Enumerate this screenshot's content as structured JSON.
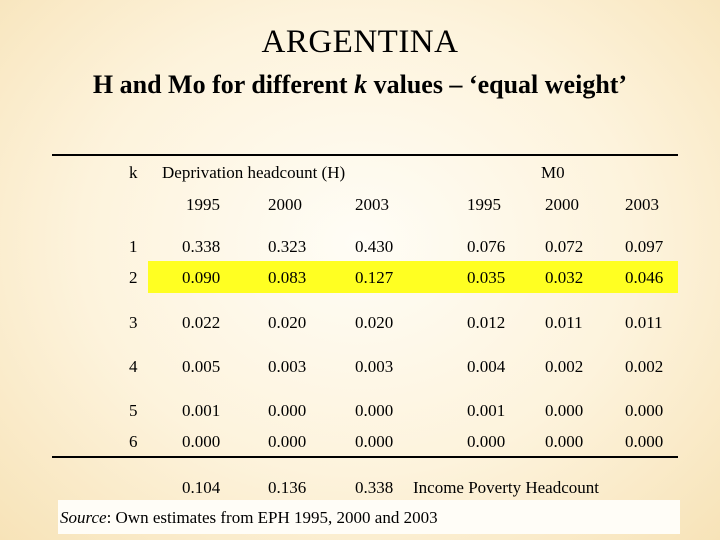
{
  "title": "ARGENTINA",
  "subtitle": {
    "before_k": "H and Mo for different ",
    "k": "k",
    "after_k": " values – ‘equal weight’"
  },
  "table": {
    "k_header": "k",
    "group_h_label": "Deprivation headcount (H)",
    "group_m0_label": "M0",
    "years": [
      "1995",
      "2000",
      "2003",
      "1995",
      "2000",
      "2003"
    ],
    "rows": [
      {
        "k": "1",
        "values": [
          "0.338",
          "0.323",
          "0.430",
          "0.076",
          "0.072",
          "0.097"
        ],
        "highlighted": false
      },
      {
        "k": "2",
        "values": [
          "0.090",
          "0.083",
          "0.127",
          "0.035",
          "0.032",
          "0.046"
        ],
        "highlighted": true
      },
      {
        "k": "3",
        "values": [
          "0.022",
          "0.020",
          "0.020",
          "0.012",
          "0.011",
          "0.011"
        ],
        "highlighted": false
      },
      {
        "k": "4",
        "values": [
          "0.005",
          "0.003",
          "0.003",
          "0.004",
          "0.002",
          "0.002"
        ],
        "highlighted": false
      },
      {
        "k": "5",
        "values": [
          "0.001",
          "0.000",
          "0.000",
          "0.001",
          "0.000",
          "0.000"
        ],
        "highlighted": false
      },
      {
        "k": "6",
        "values": [
          "0.000",
          "0.000",
          "0.000",
          "0.000",
          "0.000",
          "0.000"
        ],
        "highlighted": false
      }
    ],
    "income_poverty": {
      "values": [
        "0.104",
        "0.136",
        "0.338"
      ],
      "label": "Income Poverty Headcount"
    },
    "highlight_color": "#ffff22"
  },
  "source": {
    "label": "Source",
    "text": ": Own estimates from EPH 1995, 2000 and 2003"
  }
}
